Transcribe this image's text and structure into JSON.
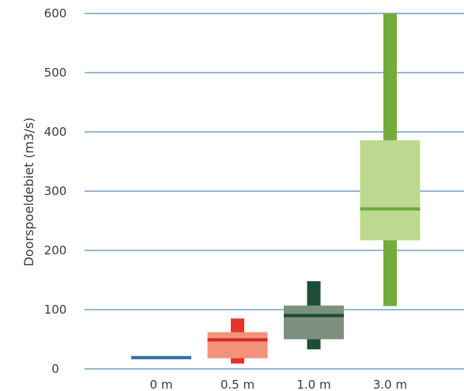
{
  "chart_data": {
    "type": "box",
    "title": "",
    "xlabel": "",
    "ylabel": "Doorspoeldebiet (m3/s)",
    "ylim": [
      0,
      600
    ],
    "yticks": [
      0,
      100,
      200,
      300,
      400,
      500,
      600
    ],
    "ytick_labels": [
      "0",
      "100",
      "200",
      "300",
      "400",
      "500",
      "600"
    ],
    "grid": "horizontal",
    "categories": [
      "0 m",
      "0.5 m",
      "1.0 m",
      "3.0 m"
    ],
    "boxes": [
      {
        "category": "0 m",
        "min": 19,
        "q1": 19,
        "median": 19,
        "q3": 20,
        "max": 20,
        "box_color": "#2f6ea6",
        "whisker_color": "#2f6ea6",
        "median_color": "#2f6ea6"
      },
      {
        "category": "0.5 m",
        "min": 9,
        "q1": 18,
        "median": 49,
        "q3": 62,
        "max": 85,
        "box_color": "#f4917a",
        "whisker_color": "#e3332c",
        "median_color": "#d42a24"
      },
      {
        "category": "1.0 m",
        "min": 33,
        "q1": 50,
        "median": 90,
        "q3": 107,
        "max": 148,
        "box_color": "#7d907d",
        "whisker_color": "#1e4d36",
        "median_color": "#1b4a33"
      },
      {
        "category": "3.0 m",
        "min": 106,
        "q1": 217,
        "median": 270,
        "q3": 386,
        "max": 600,
        "box_color": "#bcd98f",
        "whisker_color": "#72ad3b",
        "median_color": "#6cac3a"
      }
    ]
  },
  "colors": {
    "grid": "#2f6ea6",
    "text": "#3a3a3a"
  }
}
